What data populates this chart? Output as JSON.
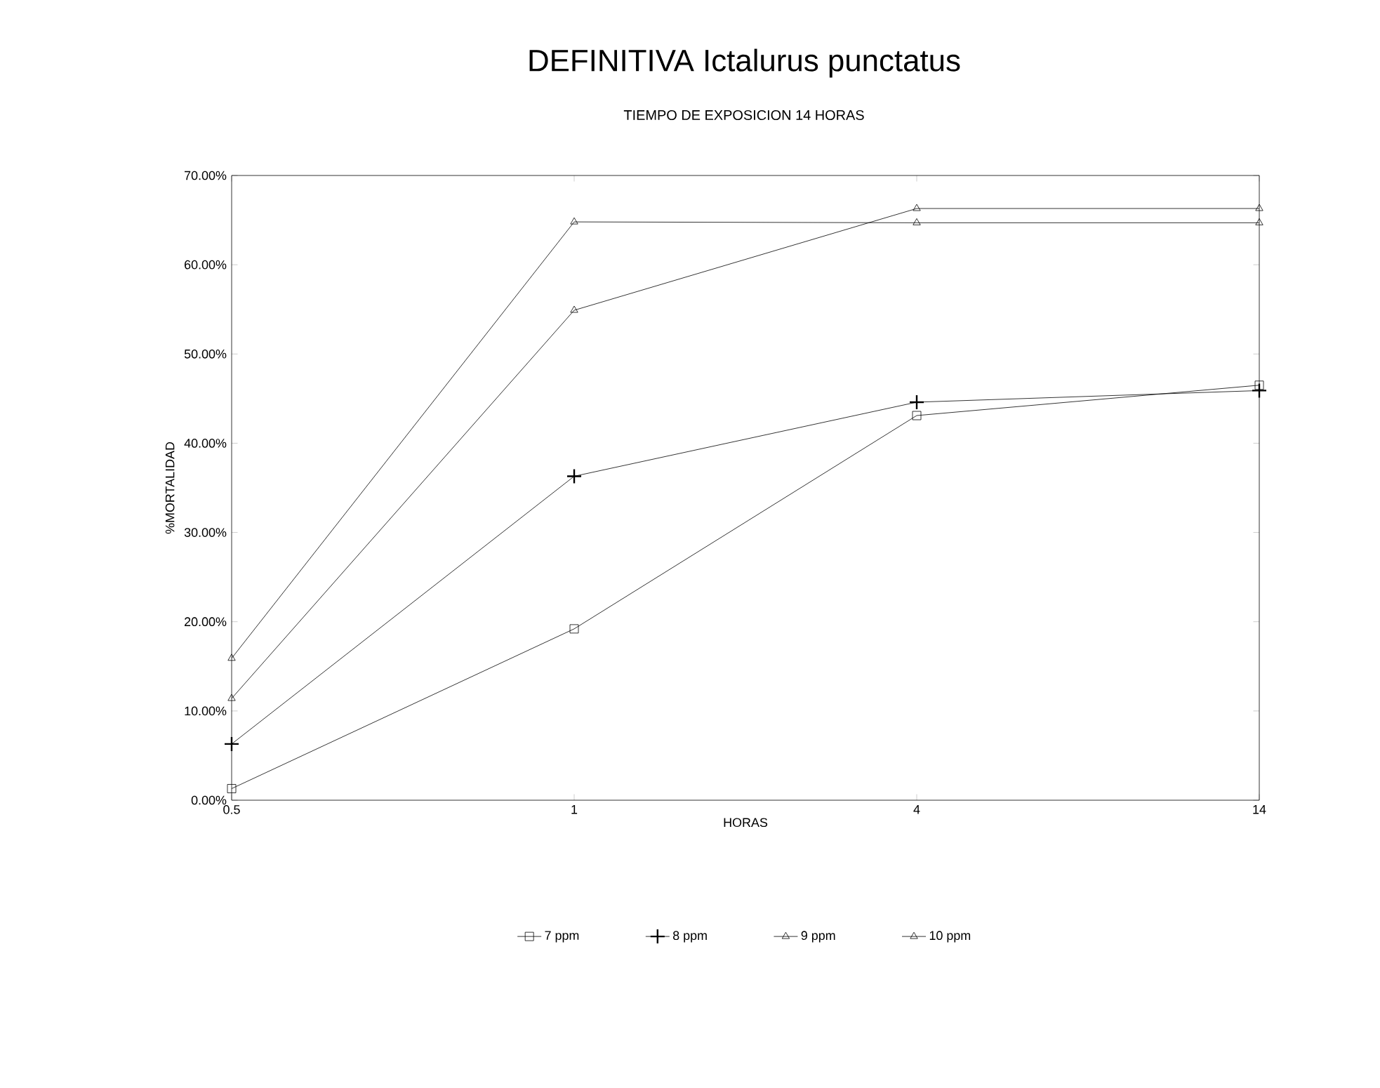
{
  "chart_data": {
    "type": "line",
    "title": "DEFINITIVA Ictalurus punctatus",
    "subtitle": "TIEMPO DE EXPOSICION 14 HORAS",
    "xlabel": "HORAS",
    "ylabel": "%MORTALIDAD",
    "categories": [
      "0.5",
      "1",
      "4",
      "14"
    ],
    "series": [
      {
        "name": "7 ppm",
        "color": "#000000",
        "marker": "square",
        "values": [
          1.3,
          19.2,
          43.1,
          46.5
        ]
      },
      {
        "name": "8 ppm",
        "color": "#000000",
        "marker": "cross",
        "values": [
          6.3,
          36.3,
          44.6,
          45.9
        ]
      },
      {
        "name": "9 ppm",
        "color": "#000000",
        "marker": "triangle",
        "values": [
          11.4,
          54.9,
          66.3,
          66.3
        ]
      },
      {
        "name": "10 ppm",
        "color": "#000000",
        "marker": "triangle",
        "values": [
          15.9,
          64.8,
          64.7,
          64.7
        ]
      }
    ],
    "ylim": [
      0,
      70
    ],
    "yticks": [
      {
        "value": 0,
        "label": "0.00%"
      },
      {
        "value": 10,
        "label": "10.00%"
      },
      {
        "value": 20,
        "label": "20.00%"
      },
      {
        "value": 30,
        "label": "30.00%"
      },
      {
        "value": 40,
        "label": "40.00%"
      },
      {
        "value": 50,
        "label": "50.00%"
      },
      {
        "value": 60,
        "label": "60.00%"
      },
      {
        "value": 70,
        "label": "70.00%"
      }
    ],
    "legend": "bottom",
    "grid": false,
    "line_style": "solid"
  }
}
